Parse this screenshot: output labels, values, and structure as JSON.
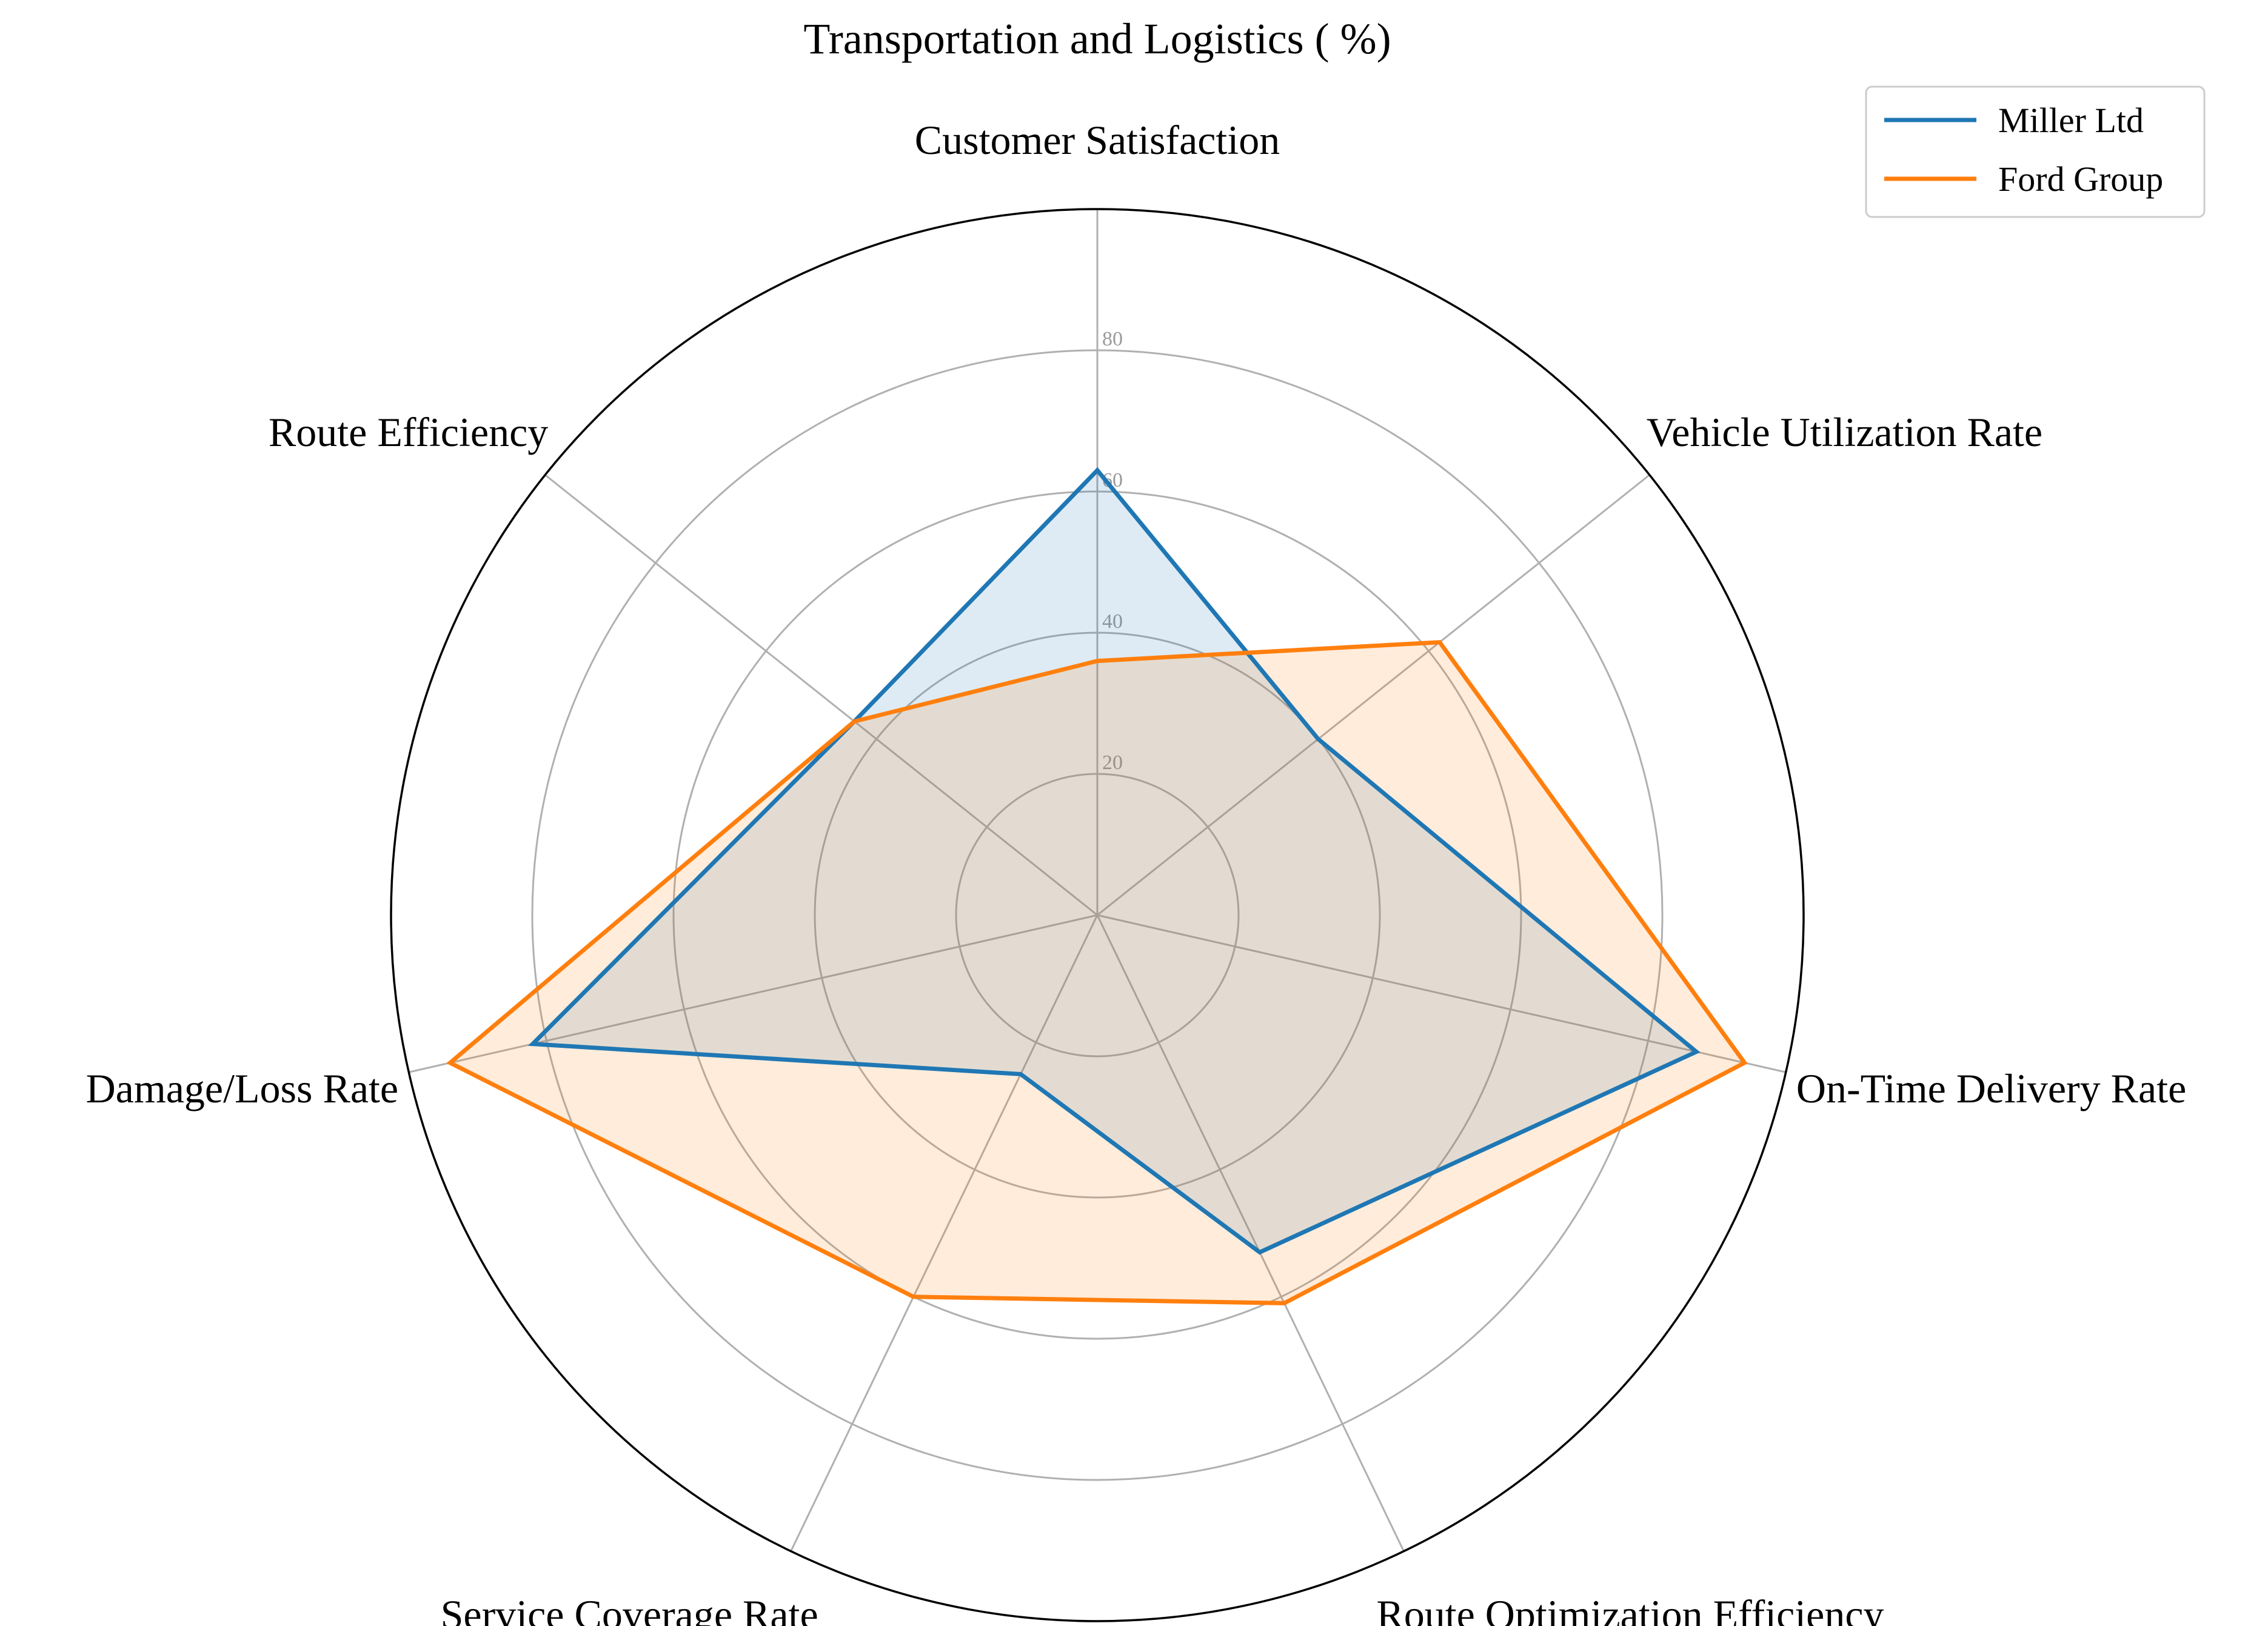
{
  "chart_data": {
    "type": "radar",
    "title": "Transportation and Logistics ( %)",
    "axes": [
      "Customer Satisfaction",
      "Vehicle Utilization Rate",
      "On-Time Delivery Rate",
      "Route Optimization Efficiency",
      "Service Coverage Rate",
      "Damage/Loss Rate",
      "Route Efficiency"
    ],
    "rmax": 100,
    "rticks": [
      20,
      40,
      60,
      80
    ],
    "rtick_labels": [
      "20",
      "40",
      "60",
      "80"
    ],
    "grid": true,
    "legend_position": "top-right",
    "series": [
      {
        "name": "Miller Ltd",
        "color": "#1f77b4",
        "fill_opacity": 0.15,
        "values": [
          63,
          40,
          87,
          53,
          25,
          82,
          44
        ]
      },
      {
        "name": "Ford Group",
        "color": "#ff7f0e",
        "fill_opacity": 0.15,
        "values": [
          36,
          62,
          94,
          61,
          60,
          94,
          44
        ]
      }
    ]
  }
}
